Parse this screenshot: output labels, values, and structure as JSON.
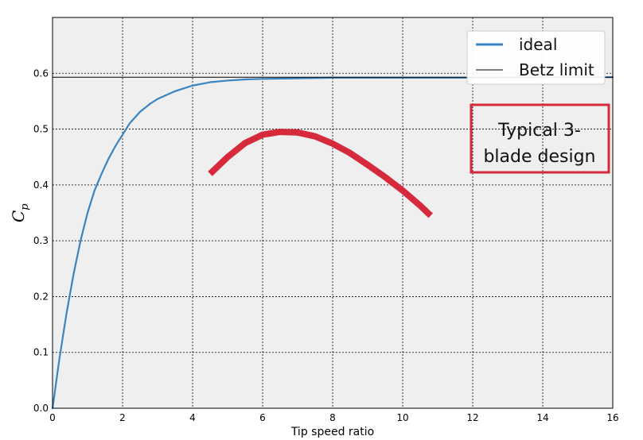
{
  "chart_data": {
    "type": "line",
    "xlabel": "Tip speed ratio",
    "ylabel": "C",
    "ylabel_subscript": "p",
    "xlim": [
      0,
      16
    ],
    "ylim": [
      0,
      0.7
    ],
    "xticks": [
      "0",
      "2",
      "4",
      "6",
      "8",
      "10",
      "12",
      "14",
      "16"
    ],
    "yticks": [
      "0.0",
      "0.1",
      "0.2",
      "0.3",
      "0.4",
      "0.5",
      "0.6"
    ],
    "grid": true,
    "legend_position": "top-right",
    "series": [
      {
        "name": "ideal",
        "color": "#3a84c0",
        "x": [
          0,
          0.05,
          0.1,
          0.2,
          0.3,
          0.4,
          0.5,
          0.6,
          0.7,
          0.8,
          1.0,
          1.2,
          1.4,
          1.6,
          1.8,
          2.0,
          2.2,
          2.5,
          2.8,
          3.0,
          3.5,
          4.0,
          4.5,
          5.0,
          5.5,
          6.0,
          7.0,
          8.0,
          10.0,
          12.0,
          14.0,
          16.0
        ],
        "y": [
          0.0,
          0.022,
          0.045,
          0.09,
          0.13,
          0.17,
          0.205,
          0.24,
          0.27,
          0.3,
          0.35,
          0.39,
          0.42,
          0.447,
          0.47,
          0.49,
          0.51,
          0.531,
          0.546,
          0.554,
          0.568,
          0.578,
          0.584,
          0.587,
          0.589,
          0.59,
          0.591,
          0.592,
          0.592,
          0.592,
          0.593,
          0.593
        ]
      },
      {
        "name": "Betz limit",
        "color": "#000000",
        "x": [
          0,
          16
        ],
        "y": [
          0.593,
          0.593
        ]
      },
      {
        "name": "",
        "color": "#d62a3c",
        "x": [
          4.5,
          5.0,
          5.5,
          6.0,
          6.5,
          7.0,
          7.5,
          8.0,
          8.5,
          9.0,
          9.5,
          10.0,
          10.5,
          10.8
        ],
        "y": [
          0.42,
          0.45,
          0.475,
          0.49,
          0.495,
          0.494,
          0.487,
          0.474,
          0.457,
          0.436,
          0.414,
          0.39,
          0.363,
          0.345
        ]
      }
    ],
    "annotation": {
      "lines": [
        "Typical 3-",
        "blade design"
      ],
      "border_color": "#d62a3c"
    }
  }
}
